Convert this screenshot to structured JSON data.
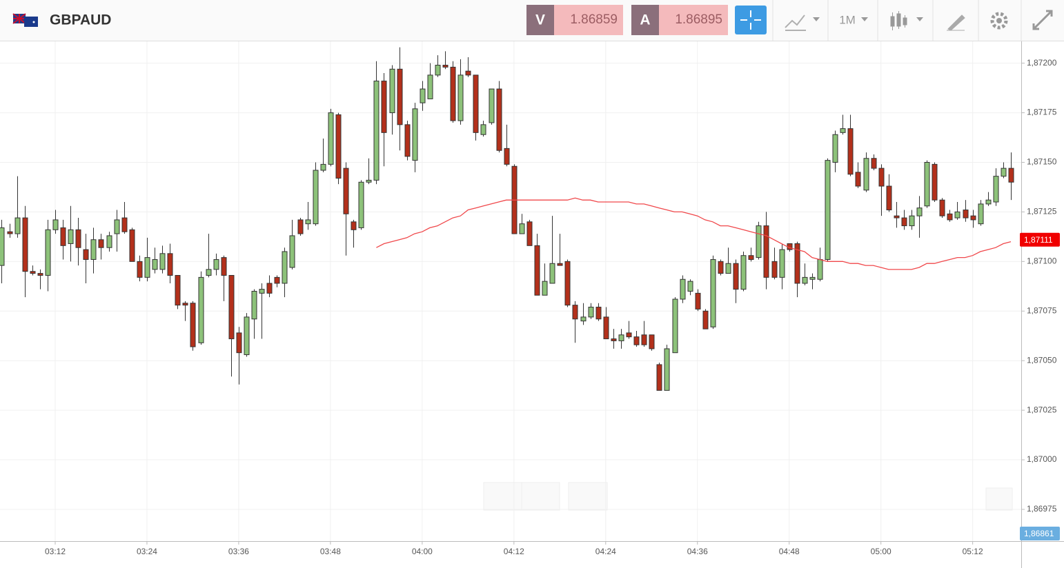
{
  "header": {
    "symbol": "GBPAUD",
    "bid_label": "V",
    "bid": 1.86859,
    "ask_label": "A",
    "ask": 1.86895,
    "interval": "1M"
  },
  "chart_data": {
    "type": "candlestick",
    "x": [
      185,
      186,
      187,
      188,
      189,
      190,
      191,
      192,
      193,
      194,
      195,
      196,
      197,
      198,
      199,
      200,
      201,
      202,
      203,
      204,
      205,
      206,
      207,
      208,
      209,
      210,
      211,
      212,
      213,
      214,
      215,
      216,
      217,
      218,
      219,
      220,
      221,
      222,
      223,
      224,
      225,
      226,
      227,
      228,
      229,
      230,
      231,
      232,
      233,
      234,
      235,
      236,
      237,
      238,
      239,
      240,
      241,
      242,
      243,
      244,
      245,
      246,
      247,
      248,
      249,
      250,
      251,
      252,
      253,
      254,
      255,
      256,
      257,
      258,
      259,
      260,
      261,
      262,
      263,
      264,
      265,
      266,
      267,
      268,
      269,
      270,
      271,
      272,
      273,
      274,
      275,
      276,
      277,
      278,
      279,
      280,
      281,
      282,
      283,
      284,
      285,
      286,
      287,
      288,
      289,
      290,
      291,
      292,
      293,
      294,
      295,
      296,
      297,
      298,
      299,
      300,
      301,
      302,
      303,
      304,
      305,
      306,
      307,
      308,
      309,
      310,
      311,
      312,
      313,
      314,
      315,
      316,
      317
    ],
    "open": [
      1.87098,
      1.87115,
      1.87114,
      1.87122,
      1.87095,
      1.87094,
      1.87093,
      1.87116,
      1.87117,
      1.87109,
      1.87116,
      1.87106,
      1.87101,
      1.87111,
      1.87107,
      1.87114,
      1.87122,
      1.87116,
      1.871,
      1.87092,
      1.87096,
      1.87096,
      1.87104,
      1.87093,
      1.87079,
      1.87079,
      1.87059,
      1.87093,
      1.87096,
      1.87102,
      1.87093,
      1.87064,
      1.87053,
      1.87071,
      1.87084,
      1.87089,
      1.87092,
      1.87089,
      1.87097,
      1.87121,
      1.87119,
      1.87119,
      1.87146,
      1.87149,
      1.87174,
      1.87147,
      1.8712,
      1.87117,
      1.8714,
      1.87141,
      1.87191,
      1.87175,
      1.87197,
      1.87169,
      1.87151,
      1.8718,
      1.87182,
      1.87194,
      1.87199,
      1.87198,
      1.87171,
      1.87196,
      1.87194,
      1.87164,
      1.8717,
      1.87187,
      1.87157,
      1.87148,
      1.87114,
      1.8712,
      1.87108,
      1.87083,
      1.87089,
      1.87099,
      1.871,
      1.87078,
      1.8707,
      1.87072,
      1.87077,
      1.87072,
      1.87061,
      1.8706,
      1.87064,
      1.87062,
      1.87063,
      1.87063,
      1.87048,
      1.87035,
      1.87054,
      1.87081,
      1.87085,
      1.87084,
      1.87075,
      1.87067,
      1.871,
      1.87094,
      1.87099,
      1.87086,
      1.87103,
      1.87102,
      1.87118,
      1.871,
      1.87092,
      1.87109,
      1.87109,
      1.87089,
      1.87091,
      1.87091,
      1.87101,
      1.8715,
      1.87165,
      1.87167,
      1.87145,
      1.87136,
      1.87152,
      1.87147,
      1.87138,
      1.87123,
      1.87122,
      1.87118,
      1.87123,
      1.87128,
      1.87149,
      1.87131,
      1.87124,
      1.87122,
      1.87126,
      1.87123,
      1.87119,
      1.87129,
      1.8713,
      1.87143,
      1.87147
    ],
    "high": [
      1.87121,
      1.87119,
      1.87143,
      1.87128,
      1.87098,
      1.87096,
      1.87121,
      1.87126,
      1.87121,
      1.87128,
      1.87122,
      1.87114,
      1.87117,
      1.87114,
      1.87115,
      1.87126,
      1.8713,
      1.87117,
      1.87103,
      1.87112,
      1.87107,
      1.87108,
      1.87109,
      1.87093,
      1.8708,
      1.8708,
      1.87095,
      1.87114,
      1.87104,
      1.87103,
      1.87093,
      1.87067,
      1.87074,
      1.87086,
      1.87089,
      1.87093,
      1.87093,
      1.87107,
      1.87121,
      1.87122,
      1.8713,
      1.8715,
      1.87162,
      1.87177,
      1.87175,
      1.8715,
      1.87121,
      1.87141,
      1.87152,
      1.87201,
      1.87195,
      1.87199,
      1.87208,
      1.87171,
      1.8718,
      1.87191,
      1.872,
      1.87204,
      1.87206,
      1.87201,
      1.87202,
      1.87203,
      1.87194,
      1.87171,
      1.87187,
      1.87191,
      1.87169,
      1.87149,
      1.87124,
      1.87121,
      1.87114,
      1.87099,
      1.87123,
      1.87114,
      1.87101,
      1.8708,
      1.87079,
      1.87079,
      1.87079,
      1.87077,
      1.87066,
      1.87066,
      1.8707,
      1.87065,
      1.8707,
      1.87063,
      1.87049,
      1.87058,
      1.87082,
      1.87093,
      1.87091,
      1.87086,
      1.87076,
      1.87103,
      1.87101,
      1.87107,
      1.87101,
      1.87105,
      1.87107,
      1.8712,
      1.87125,
      1.87107,
      1.87109,
      1.87109,
      1.8711,
      1.87099,
      1.87094,
      1.87107,
      1.87152,
      1.87166,
      1.87174,
      1.87174,
      1.8715,
      1.87155,
      1.87154,
      1.87149,
      1.87144,
      1.8713,
      1.87126,
      1.87126,
      1.87133,
      1.87151,
      1.8715,
      1.87132,
      1.87126,
      1.8713,
      1.87131,
      1.87126,
      1.87131,
      1.87135,
      1.87147,
      1.8715,
      1.87155
    ],
    "low": [
      1.87089,
      1.87112,
      1.87112,
      1.87082,
      1.87093,
      1.87086,
      1.87085,
      1.87114,
      1.87101,
      1.871,
      1.87098,
      1.87089,
      1.87094,
      1.87101,
      1.87105,
      1.87105,
      1.87114,
      1.871,
      1.8709,
      1.8709,
      1.87094,
      1.87094,
      1.87089,
      1.87076,
      1.8707,
      1.87055,
      1.87058,
      1.87092,
      1.87093,
      1.8708,
      1.87042,
      1.87038,
      1.87052,
      1.87061,
      1.87061,
      1.87082,
      1.87087,
      1.87082,
      1.87096,
      1.87113,
      1.87116,
      1.87118,
      1.87145,
      1.87148,
      1.87139,
      1.87103,
      1.87107,
      1.87116,
      1.87139,
      1.87139,
      1.87148,
      1.87164,
      1.87156,
      1.87151,
      1.87145,
      1.87176,
      1.87182,
      1.87193,
      1.87197,
      1.8717,
      1.87169,
      1.87193,
      1.87161,
      1.87163,
      1.87169,
      1.87155,
      1.87148,
      1.87114,
      1.87114,
      1.87108,
      1.87083,
      1.87083,
      1.87089,
      1.87098,
      1.87077,
      1.87059,
      1.87068,
      1.87071,
      1.8707,
      1.87061,
      1.87056,
      1.87056,
      1.87061,
      1.87057,
      1.87057,
      1.87055,
      1.87035,
      1.87035,
      1.87054,
      1.87079,
      1.87083,
      1.87075,
      1.87066,
      1.87066,
      1.87093,
      1.87094,
      1.87079,
      1.87085,
      1.871,
      1.87101,
      1.87086,
      1.87091,
      1.87086,
      1.87105,
      1.87082,
      1.87088,
      1.87086,
      1.8709,
      1.871,
      1.87145,
      1.87164,
      1.87143,
      1.87137,
      1.87135,
      1.87146,
      1.87123,
      1.87125,
      1.87117,
      1.87116,
      1.87116,
      1.87112,
      1.87127,
      1.8713,
      1.87122,
      1.8712,
      1.87121,
      1.8712,
      1.87117,
      1.87118,
      1.87128,
      1.87128,
      1.87142,
      1.87131
    ],
    "close": [
      1.87117,
      1.87114,
      1.87122,
      1.87095,
      1.87094,
      1.87093,
      1.87116,
      1.87121,
      1.87108,
      1.87116,
      1.87107,
      1.87101,
      1.87111,
      1.87107,
      1.87113,
      1.87121,
      1.87115,
      1.871,
      1.87092,
      1.87102,
      1.87101,
      1.87104,
      1.87093,
      1.87078,
      1.87078,
      1.87057,
      1.87092,
      1.87096,
      1.87101,
      1.87093,
      1.87061,
      1.87054,
      1.87072,
      1.87085,
      1.87086,
      1.87084,
      1.87089,
      1.87105,
      1.87113,
      1.87114,
      1.87121,
      1.87146,
      1.87149,
      1.87175,
      1.87142,
      1.87124,
      1.87116,
      1.8714,
      1.87141,
      1.87191,
      1.87165,
      1.87197,
      1.87169,
      1.87153,
      1.87177,
      1.87187,
      1.87194,
      1.87199,
      1.87198,
      1.87171,
      1.87194,
      1.87194,
      1.87165,
      1.87169,
      1.87187,
      1.87156,
      1.87149,
      1.87114,
      1.87119,
      1.87108,
      1.87083,
      1.8709,
      1.87099,
      1.87098,
      1.87078,
      1.87071,
      1.87072,
      1.87077,
      1.87071,
      1.87061,
      1.8706,
      1.87063,
      1.87062,
      1.87058,
      1.87058,
      1.87056,
      1.87035,
      1.87056,
      1.87081,
      1.87091,
      1.8709,
      1.87076,
      1.87066,
      1.87101,
      1.87094,
      1.87099,
      1.87086,
      1.87103,
      1.87101,
      1.87118,
      1.87092,
      1.87092,
      1.87106,
      1.87106,
      1.87089,
      1.87092,
      1.87092,
      1.87101,
      1.87151,
      1.87164,
      1.87167,
      1.87144,
      1.87138,
      1.87152,
      1.87147,
      1.87138,
      1.87126,
      1.87122,
      1.87118,
      1.87123,
      1.87127,
      1.8715,
      1.87131,
      1.87123,
      1.87121,
      1.87125,
      1.87122,
      1.87121,
      1.87129,
      1.87131,
      1.87143,
      1.87147,
      1.8714
    ],
    "up_color": "#8dc27a",
    "down_color": "#b3301b",
    "moving_average": {
      "color": "#f0474a",
      "values": [
        null,
        null,
        null,
        null,
        null,
        null,
        null,
        null,
        null,
        null,
        null,
        null,
        null,
        null,
        null,
        null,
        null,
        null,
        null,
        null,
        null,
        null,
        null,
        null,
        null,
        null,
        null,
        null,
        null,
        null,
        null,
        null,
        null,
        null,
        null,
        null,
        null,
        null,
        null,
        null,
        null,
        null,
        null,
        null,
        null,
        null,
        null,
        null,
        null,
        1.87107,
        1.87109,
        1.8711,
        1.87111,
        1.87112,
        1.87114,
        1.87115,
        1.87117,
        1.87118,
        1.8712,
        1.87122,
        1.87123,
        1.87126,
        1.87127,
        1.87128,
        1.87129,
        1.8713,
        1.87131,
        1.87131,
        1.87131,
        1.87131,
        1.87131,
        1.87131,
        1.87131,
        1.87131,
        1.87131,
        1.87132,
        1.87131,
        1.87131,
        1.8713,
        1.8713,
        1.8713,
        1.8713,
        1.8713,
        1.87129,
        1.87129,
        1.87128,
        1.87127,
        1.87126,
        1.87125,
        1.87125,
        1.87124,
        1.87123,
        1.87121,
        1.8712,
        1.87118,
        1.87118,
        1.87117,
        1.87116,
        1.87115,
        1.87114,
        1.87113,
        1.87111,
        1.87109,
        1.87107,
        1.87106,
        1.87105,
        1.87102,
        1.87101,
        1.871,
        1.871,
        1.871,
        1.87099,
        1.87099,
        1.87098,
        1.87098,
        1.87097,
        1.87096,
        1.87096,
        1.87096,
        1.87096,
        1.87097,
        1.87099,
        1.87099,
        1.871,
        1.87101,
        1.87102,
        1.87102,
        1.87103,
        1.87105,
        1.87106,
        1.87107,
        1.87109,
        1.8711
      ]
    },
    "last_marker": {
      "value": 1.87111,
      "label": "1,87111",
      "color": "#f00000"
    },
    "bid_marker": {
      "value": 1.86861,
      "label": "1,86861",
      "color": "#6aaee0"
    },
    "xlim": [
      184.78,
      318.35
    ],
    "xticks": [
      {
        "value": 192,
        "label": "03:12"
      },
      {
        "value": 204,
        "label": "03:24"
      },
      {
        "value": 216,
        "label": "03:36"
      },
      {
        "value": 228,
        "label": "03:48"
      },
      {
        "value": 240,
        "label": "04:00"
      },
      {
        "value": 252,
        "label": "04:12"
      },
      {
        "value": 264,
        "label": "04:24"
      },
      {
        "value": 276,
        "label": "04:36"
      },
      {
        "value": 288,
        "label": "04:48"
      },
      {
        "value": 300,
        "label": "05:00"
      },
      {
        "value": 312,
        "label": "05:12"
      }
    ],
    "ylim": [
      1.86959,
      1.87211
    ],
    "yticks": [
      {
        "value": 1.86975,
        "label": "1,86975"
      },
      {
        "value": 1.87,
        "label": "1,87000"
      },
      {
        "value": 1.87025,
        "label": "1,87025"
      },
      {
        "value": 1.8705,
        "label": "1,87050"
      },
      {
        "value": 1.87075,
        "label": "1,87075"
      },
      {
        "value": 1.871,
        "label": "1,87100"
      },
      {
        "value": 1.87125,
        "label": "1,87125"
      },
      {
        "value": 1.8715,
        "label": "1,87150"
      },
      {
        "value": 1.87175,
        "label": "1,87175"
      },
      {
        "value": 1.872,
        "label": "1,87200"
      }
    ],
    "grid": true
  }
}
